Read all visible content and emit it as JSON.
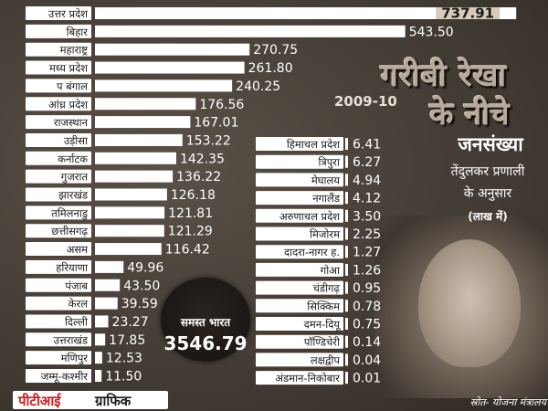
{
  "chart_data": [
    {
      "type": "bar",
      "orientation": "horizontal",
      "categories": [
        "उत्तर प्रदेश",
        "बिहार",
        "महाराष्ट्र",
        "मध्य प्रदेश",
        "प बंगाल",
        "आंध्र प्रदेश",
        "राजस्थान",
        "उड़ीसा",
        "कर्नाटक",
        "गुजरात",
        "झारखंड",
        "तमिलनाडु",
        "छत्तीसगढ़",
        "असम",
        "हरियाणा",
        "पंजाब",
        "केरल",
        "दिल्ली",
        "उत्तराखंड",
        "मणिपुर",
        "जम्मू-कश्मीर"
      ],
      "values": [
        737.91,
        543.5,
        270.75,
        261.8,
        240.25,
        176.56,
        167.01,
        153.22,
        142.35,
        136.22,
        126.18,
        121.81,
        121.29,
        116.42,
        49.96,
        43.5,
        39.59,
        23.27,
        17.85,
        12.53,
        11.5
      ],
      "value_labels": [
        "737.91",
        "543.50",
        "270.75",
        "261.80",
        "240.25",
        "176.56",
        "167.01",
        "153.22",
        "142.35",
        "136.22",
        "126.18",
        "121.81",
        "121.29",
        "116.42",
        "49.96",
        "43.50",
        "39.59",
        "23.27",
        "17.85",
        "12.53",
        "11.50"
      ],
      "xlim": [
        0,
        760
      ]
    },
    {
      "type": "table",
      "categories": [
        "हिमाचल प्रदेश",
        "त्रिपुरा",
        "मेघालय",
        "नगालैंड",
        "अरुणाचल प्रदेश",
        "मिजोरम",
        "दादरा-नागर ह.",
        "गोआ",
        "चंडीगढ़",
        "सिक्किम",
        "दमन-दियू",
        "पॉण्डिचेरी",
        "लक्षद्वीप",
        "अंडमान-निकोबार"
      ],
      "values": [
        6.41,
        6.27,
        4.94,
        4.12,
        3.5,
        2.25,
        1.27,
        1.26,
        0.95,
        0.78,
        0.75,
        0.14,
        0.04,
        0.01
      ],
      "value_labels": [
        "6.41",
        "6.27",
        "4.94",
        "4.12",
        "3.50",
        "2.25",
        "1.27",
        "1.26",
        "0.95",
        "0.78",
        "0.75",
        "0.14",
        "0.04",
        "0.01"
      ]
    }
  ],
  "title": {
    "line1": "गरीबी रेखा",
    "line2": "के नीचे",
    "year": "2009-10"
  },
  "subtitle": {
    "main": "जनसंख्या",
    "line2": "तेंदुलकर प्रणाली",
    "line3": "के अनुसार",
    "unit": "(लाख में)"
  },
  "total": {
    "label": "समस्त भारत",
    "value": "3546.79"
  },
  "logo": {
    "part1": "पीटीआई",
    "part2": "ग्राफिक"
  },
  "source": "स्रोत- योजना मंत्रालय",
  "colors": {
    "bar_fill": "#ffffff",
    "background": "#4a4239",
    "label_box": "#ffffff",
    "label_text": "#1a1a1a",
    "value_text": "#ffffff",
    "highlight_box": "#d8cbbb",
    "logo_red": "#cc1f1f"
  }
}
